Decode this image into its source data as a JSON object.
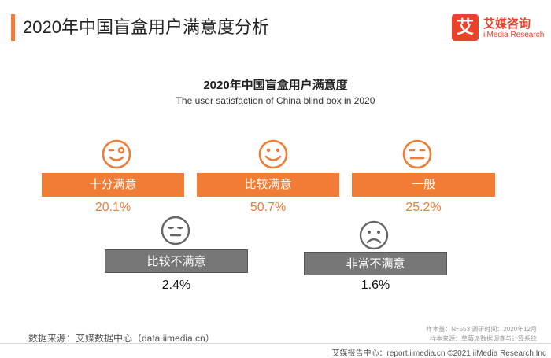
{
  "header": {
    "title": "2020年中国盲盒用户满意度分析"
  },
  "logo": {
    "mark": "艾",
    "name_cn": "艾媒咨询",
    "name_en": "iiMedia Research"
  },
  "chart_data": {
    "type": "table",
    "title": "2020年中国盲盒用户满意度",
    "subtitle": "The user satisfaction of China blind box in 2020",
    "categories": [
      "十分满意",
      "比较满意",
      "一般",
      "比较不满意",
      "非常不满意"
    ],
    "values": [
      20.1,
      50.7,
      25.2,
      2.4,
      1.6
    ],
    "value_labels": [
      "20.1%",
      "50.7%",
      "25.2%",
      "2.4%",
      "1.6%"
    ],
    "icons": [
      "wink-face-icon",
      "smile-face-icon",
      "neutral-face-icon",
      "sleepy-face-icon",
      "frown-face-icon"
    ],
    "colors": {
      "positive": "#f07c35",
      "negative": "#777777"
    }
  },
  "footer": {
    "source": "数据来源：艾媒数据中心（data.iimedia.cn）",
    "sample": "样本量：N=553      调研时间：2020年12月",
    "sample_origin": "样本来源：草莓派数据调查与计算系统",
    "copyright": "艾媒报告中心：report.iimedia.cn  ©2021  iiMedia Research  Inc"
  }
}
